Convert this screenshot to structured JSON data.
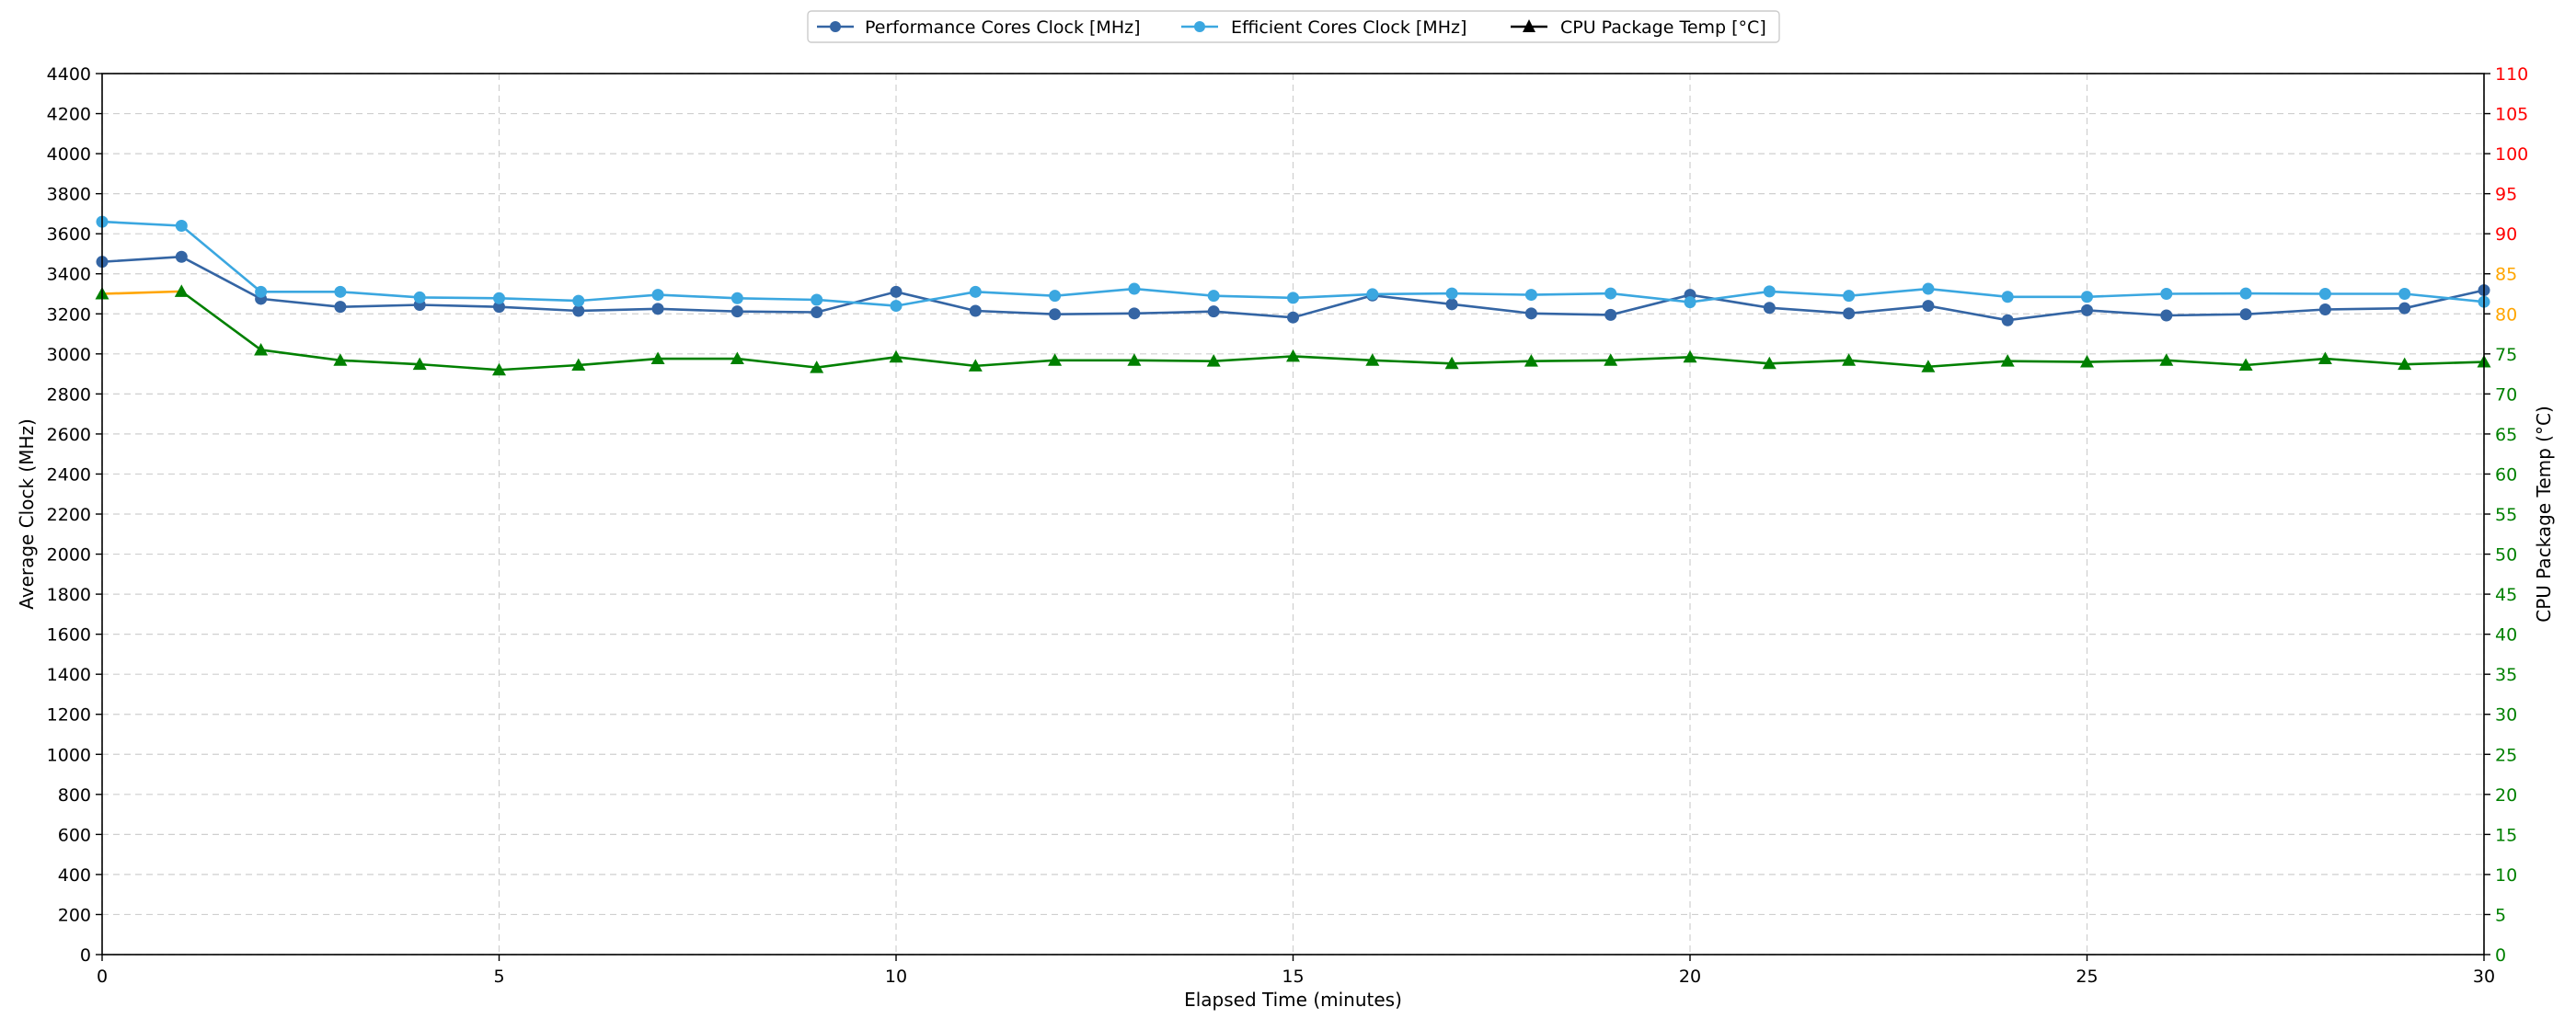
{
  "chart_data": {
    "type": "line",
    "xlabel": "Elapsed Time (minutes)",
    "ylabel": "Average Clock (MHz)",
    "y2label": "CPU Package Temp (°C)",
    "xlim": [
      0,
      30
    ],
    "ylim": [
      0,
      4400
    ],
    "y2lim": [
      0,
      110
    ],
    "grid": true,
    "legend_position": "top-center",
    "x_ticks": [
      0,
      5,
      10,
      15,
      20,
      25,
      30
    ],
    "y_ticks": [
      0,
      200,
      400,
      600,
      800,
      1000,
      1200,
      1400,
      1600,
      1800,
      2000,
      2200,
      2400,
      2600,
      2800,
      3000,
      3200,
      3400,
      3600,
      3800,
      4000,
      4200,
      4400
    ],
    "y2_ticks": [
      0,
      5,
      10,
      15,
      20,
      25,
      30,
      35,
      40,
      45,
      50,
      55,
      60,
      65,
      70,
      75,
      80,
      85,
      90,
      95,
      100,
      105,
      110
    ],
    "y2_tick_colors": {
      "default": "#008000",
      "from_80_to_85": "#FFA500",
      "from_90": "#FF0000"
    },
    "x": [
      0,
      1,
      2,
      3,
      4,
      5,
      6,
      7,
      8,
      9,
      10,
      11,
      12,
      13,
      14,
      15,
      16,
      17,
      18,
      19,
      20,
      21,
      22,
      23,
      24,
      25,
      26,
      27,
      28,
      29,
      30
    ],
    "series": [
      {
        "name": "Performance Cores Clock [MHz]",
        "axis": "left",
        "color": "#3465A4",
        "marker": "circle",
        "values": [
          3460,
          3485,
          3275,
          3235,
          3245,
          3235,
          3215,
          3225,
          3212,
          3208,
          3310,
          3215,
          3198,
          3202,
          3212,
          3182,
          3292,
          3248,
          3202,
          3195,
          3295,
          3230,
          3202,
          3240,
          3168,
          3218,
          3192,
          3198,
          3222,
          3228,
          3318
        ]
      },
      {
        "name": "Efficient Cores Clock [MHz]",
        "axis": "left",
        "color": "#3BA7E0",
        "marker": "circle",
        "values": [
          3660,
          3640,
          3310,
          3310,
          3282,
          3278,
          3265,
          3295,
          3278,
          3270,
          3240,
          3310,
          3290,
          3325,
          3290,
          3280,
          3298,
          3302,
          3295,
          3302,
          3258,
          3312,
          3290,
          3325,
          3285,
          3285,
          3300,
          3302,
          3300,
          3300,
          3260
        ]
      },
      {
        "name": "CPU Package Temp [°C]",
        "axis": "right",
        "color": "#008000",
        "hot_color": "#FFA500",
        "marker": "triangle",
        "values": [
          82.5,
          82.8,
          75.5,
          74.2,
          73.7,
          73.0,
          73.6,
          74.4,
          74.4,
          73.3,
          74.6,
          73.5,
          74.2,
          74.2,
          74.1,
          74.7,
          74.2,
          73.8,
          74.1,
          74.2,
          74.6,
          73.8,
          74.2,
          73.4,
          74.1,
          74.0,
          74.2,
          73.6,
          74.4,
          73.7,
          74.0
        ]
      }
    ]
  }
}
